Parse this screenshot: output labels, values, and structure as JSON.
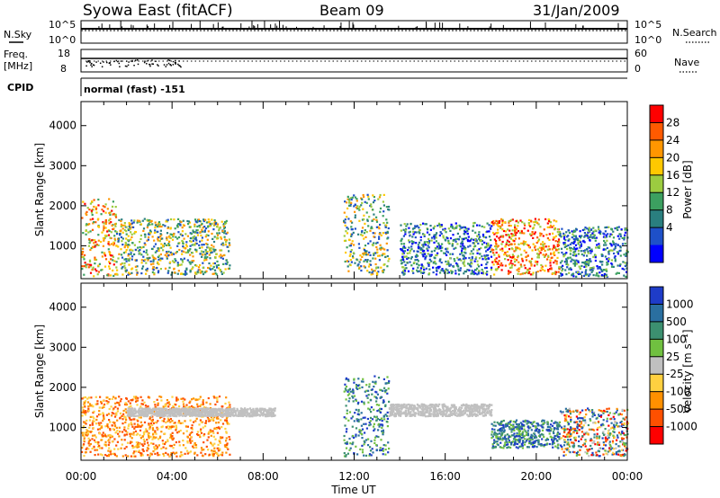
{
  "header": {
    "station": "Syowa East (fitACF)",
    "beam": "Beam 09",
    "date": "31/Jan/2009"
  },
  "top_panels": {
    "nsky_label": "N.Sky",
    "nsky_ticks": [
      "10^5",
      "10^0"
    ],
    "nsearch_label": "N.Search",
    "nsearch_ticks": [
      "10^5",
      "10^0"
    ],
    "freq_label_line1": "Freq.",
    "freq_label_line2": "[MHz]",
    "freq_ticks": [
      "18",
      "8"
    ],
    "nave_label": "Nave",
    "nave_ticks": [
      "60",
      "0"
    ],
    "cpid_label": "CPID",
    "cpid_text": "normal (fast) -151"
  },
  "chart_data": [
    {
      "type": "heatmap",
      "panel": "power",
      "ylabel": "Slant Range [km]",
      "ylim": [
        180,
        4600
      ],
      "yticks": [
        1000,
        2000,
        3000,
        4000
      ],
      "xlim_hours": [
        0,
        24
      ],
      "colorbar": {
        "label": "Power [dB]",
        "ticks": [
          "28",
          "24",
          "20",
          "16",
          "12",
          "8",
          "4"
        ],
        "colors": [
          "#ff0000",
          "#ff5a00",
          "#ff9600",
          "#ffc800",
          "#9ccc40",
          "#3ca060",
          "#2a7f7f",
          "#1e50c8",
          "#0000ff"
        ]
      },
      "regions": [
        {
          "t0": 0.0,
          "t1": 1.5,
          "r0": 250,
          "r1": 2200,
          "level": "mixed-high"
        },
        {
          "t0": 1.5,
          "t1": 6.5,
          "r0": 300,
          "r1": 1700,
          "level": "mid"
        },
        {
          "t0": 11.5,
          "t1": 13.5,
          "r0": 300,
          "r1": 2300,
          "level": "mid"
        },
        {
          "t0": 14.0,
          "t1": 18.0,
          "r0": 300,
          "r1": 1600,
          "level": "low"
        },
        {
          "t0": 18.0,
          "t1": 21.0,
          "r0": 300,
          "r1": 1700,
          "level": "high"
        },
        {
          "t0": 21.0,
          "t1": 24.0,
          "r0": 250,
          "r1": 1500,
          "level": "low"
        }
      ]
    },
    {
      "type": "heatmap",
      "panel": "velocity",
      "ylabel": "Slant Range [km]",
      "xlabel": "Time UT",
      "ylim": [
        180,
        4600
      ],
      "yticks": [
        1000,
        2000,
        3000,
        4000
      ],
      "xlim_hours": [
        0,
        24
      ],
      "xticks": [
        "00:00",
        "04:00",
        "08:00",
        "12:00",
        "16:00",
        "20:00",
        "00:00"
      ],
      "colorbar": {
        "label": "Velocity [m s⁻¹]",
        "ticks": [
          "1000",
          "500",
          "100",
          "25",
          "-25",
          "-100",
          "-500",
          "-1000"
        ],
        "colors": [
          "#1e3cc8",
          "#2a6fa0",
          "#3c9070",
          "#70c040",
          "#c0c0c0",
          "#ffd040",
          "#ff9000",
          "#ff5000",
          "#ff0000"
        ]
      },
      "regions": [
        {
          "t0": 0.0,
          "t1": 6.5,
          "r0": 300,
          "r1": 1800,
          "level": "negative"
        },
        {
          "t0": 2.0,
          "t1": 8.5,
          "r0": 1300,
          "r1": 1500,
          "level": "near-zero"
        },
        {
          "t0": 11.5,
          "t1": 13.5,
          "r0": 300,
          "r1": 2300,
          "level": "positive"
        },
        {
          "t0": 13.5,
          "t1": 18.0,
          "r0": 1300,
          "r1": 1600,
          "level": "near-zero"
        },
        {
          "t0": 18.0,
          "t1": 21.0,
          "r0": 500,
          "r1": 1200,
          "level": "positive"
        },
        {
          "t0": 21.0,
          "t1": 24.0,
          "r0": 300,
          "r1": 1500,
          "level": "mixed"
        }
      ]
    }
  ]
}
